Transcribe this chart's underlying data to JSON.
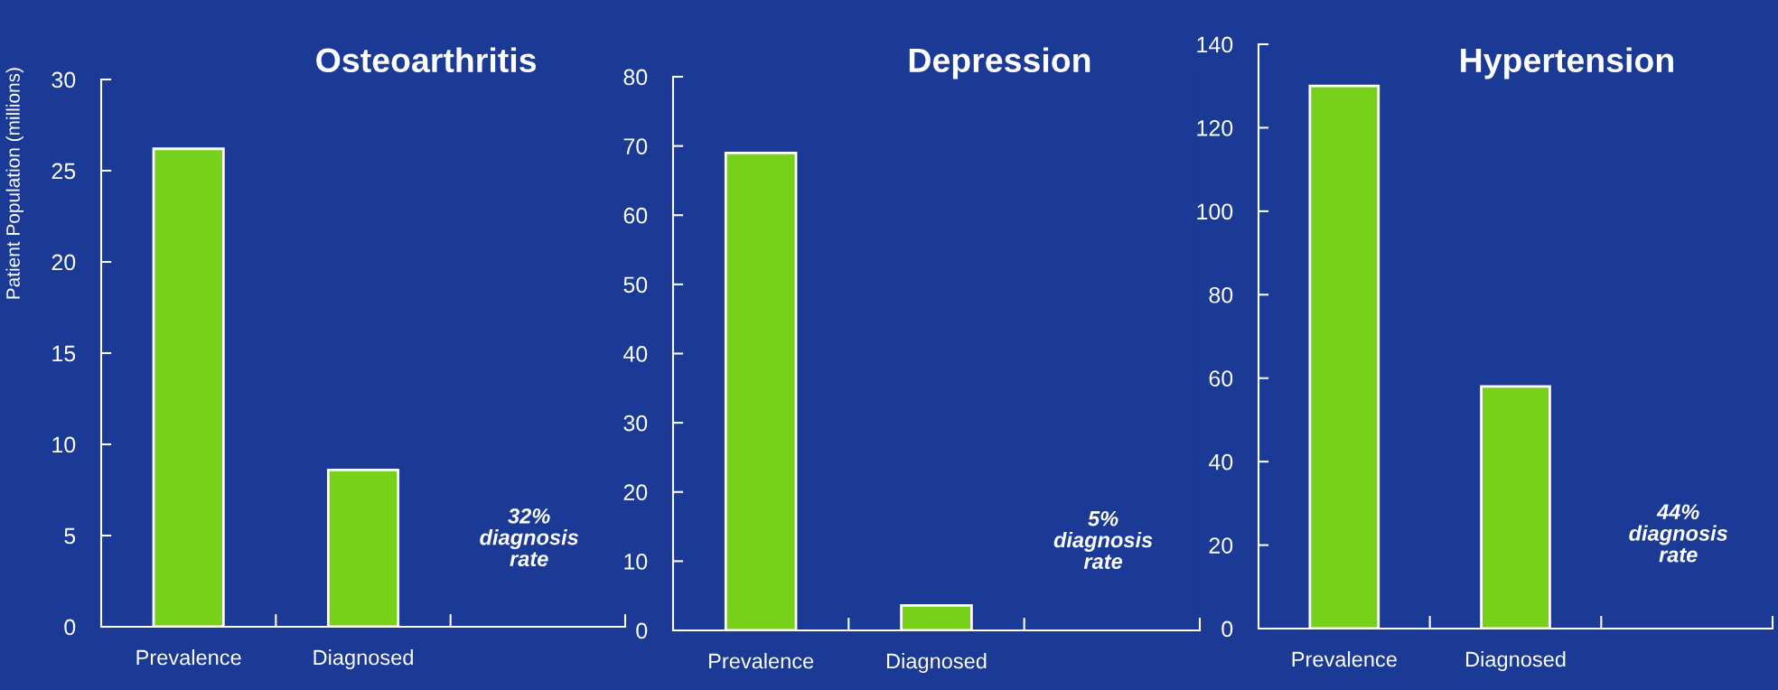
{
  "chart_data": [
    {
      "type": "bar",
      "title": "Osteoarthritis",
      "ylabel": "Patient Population (millions)",
      "categories": [
        "Prevalence",
        "Diagnosed",
        null
      ],
      "values": [
        26.2,
        8.6,
        null
      ],
      "color": "#77d11b",
      "ylim": [
        0,
        30
      ],
      "yticks": [
        0,
        5,
        10,
        15,
        20,
        25,
        30
      ],
      "grid": false,
      "annotations": [
        "32%\ndiagnosis\nrate"
      ]
    },
    {
      "type": "bar",
      "title": "Depression",
      "categories": [
        "Prevalence",
        "Diagnosed",
        null
      ],
      "values": [
        69,
        3.6,
        null
      ],
      "color": "#77d11b",
      "ylim": [
        0,
        80
      ],
      "yticks": [
        0,
        10,
        20,
        30,
        40,
        50,
        60,
        70,
        80
      ],
      "grid": false,
      "annotations": [
        "5%\ndiagnosis\nrate"
      ]
    },
    {
      "type": "bar",
      "title": "Hypertension",
      "categories": [
        "Prevalence",
        "Diagnosed",
        null
      ],
      "values": [
        130,
        58,
        null
      ],
      "color": "#77d11b",
      "ylim": [
        0,
        140
      ],
      "yticks": [
        0,
        20,
        40,
        60,
        80,
        100,
        120,
        140
      ],
      "grid": false,
      "annotations": [
        "44%\ndiagnosis\nrate"
      ]
    }
  ]
}
